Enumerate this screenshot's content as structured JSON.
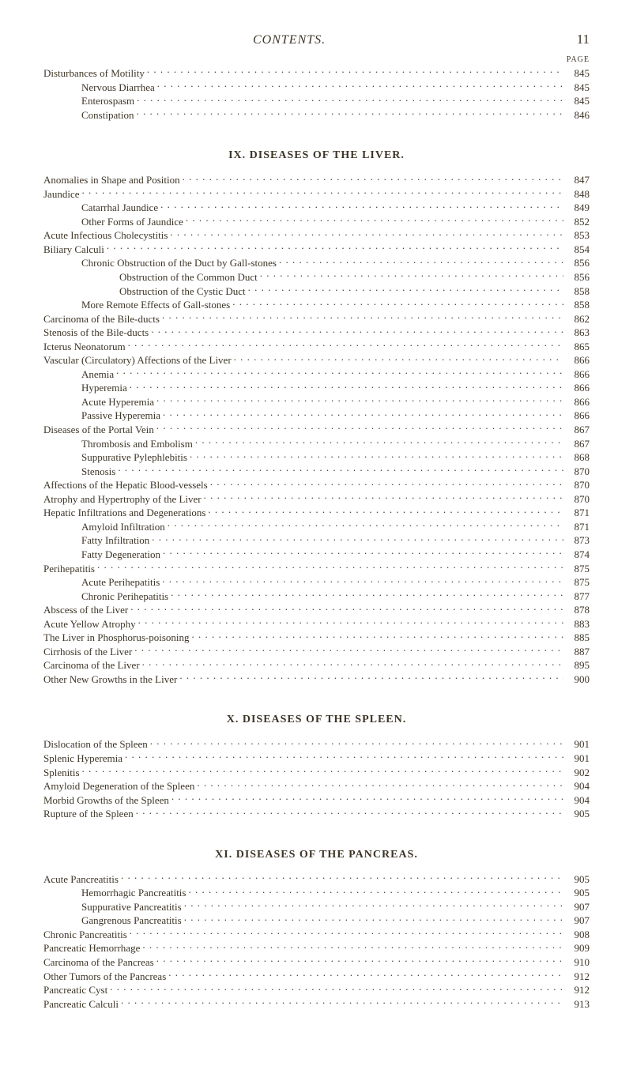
{
  "header": {
    "title": "CONTENTS.",
    "page_number": "11",
    "page_label": "PAGE"
  },
  "top_block": {
    "entries": [
      {
        "indent": 0,
        "label": "Disturbances of Motility",
        "page": "845"
      },
      {
        "indent": 1,
        "label": "Nervous Diarrhea",
        "page": "845"
      },
      {
        "indent": 1,
        "label": "Enterospasm",
        "page": "845"
      },
      {
        "indent": 1,
        "label": "Constipation",
        "page": "846"
      }
    ]
  },
  "sections": [
    {
      "heading": "IX. DISEASES OF THE LIVER.",
      "entries": [
        {
          "indent": 0,
          "label": "Anomalies in Shape and Position",
          "page": "847"
        },
        {
          "indent": 0,
          "label": "Jaundice",
          "page": "848"
        },
        {
          "indent": 1,
          "label": "Catarrhal Jaundice",
          "page": "849"
        },
        {
          "indent": 1,
          "label": "Other Forms of Jaundice",
          "page": "852"
        },
        {
          "indent": 0,
          "label": "Acute Infectious Cholecystitis",
          "page": "853"
        },
        {
          "indent": 0,
          "label": "Biliary Calculi",
          "page": "854"
        },
        {
          "indent": 1,
          "label": "Chronic Obstruction of the Duct by Gall-stones",
          "page": "856"
        },
        {
          "indent": 2,
          "label": "Obstruction of the Common Duct",
          "page": "856"
        },
        {
          "indent": 2,
          "label": "Obstruction of the Cystic Duct",
          "page": "858"
        },
        {
          "indent": 1,
          "label": "More Remote Effects of Gall-stones",
          "page": "858"
        },
        {
          "indent": 0,
          "label": "Carcinoma of the Bile-ducts",
          "page": "862"
        },
        {
          "indent": 0,
          "label": "Stenosis of the Bile-ducts",
          "page": "863"
        },
        {
          "indent": 0,
          "label": "Icterus Neonatorum",
          "page": "865"
        },
        {
          "indent": 0,
          "label": "Vascular (Circulatory) Affections of the Liver",
          "page": "866"
        },
        {
          "indent": 1,
          "label": "Anemia",
          "page": "866"
        },
        {
          "indent": 1,
          "label": "Hyperemia",
          "page": "866"
        },
        {
          "indent": 1,
          "label": "Acute Hyperemia",
          "page": "866"
        },
        {
          "indent": 1,
          "label": "Passive Hyperemia",
          "page": "866"
        },
        {
          "indent": 0,
          "label": "Diseases of the Portal Vein",
          "page": "867"
        },
        {
          "indent": 1,
          "label": "Thrombosis and Embolism",
          "page": "867"
        },
        {
          "indent": 1,
          "label": "Suppurative Pylephlebitis",
          "page": "868"
        },
        {
          "indent": 1,
          "label": "Stenosis",
          "page": "870"
        },
        {
          "indent": 0,
          "label": "Affections of the Hepatic Blood-vessels",
          "page": "870"
        },
        {
          "indent": 0,
          "label": "Atrophy and Hypertrophy of the Liver",
          "page": "870"
        },
        {
          "indent": 0,
          "label": "Hepatic Infiltrations and Degenerations",
          "page": "871"
        },
        {
          "indent": 1,
          "label": "Amyloid Infiltration",
          "page": "871"
        },
        {
          "indent": 1,
          "label": "Fatty Infiltration",
          "page": "873"
        },
        {
          "indent": 1,
          "label": "Fatty Degeneration",
          "page": "874"
        },
        {
          "indent": 0,
          "label": "Perihepatitis",
          "page": "875"
        },
        {
          "indent": 1,
          "label": "Acute Perihepatitis",
          "page": "875"
        },
        {
          "indent": 1,
          "label": "Chronic Perihepatitis",
          "page": "877"
        },
        {
          "indent": 0,
          "label": "Abscess of the Liver",
          "page": "878"
        },
        {
          "indent": 0,
          "label": "Acute Yellow Atrophy",
          "page": "883"
        },
        {
          "indent": 0,
          "label": "The Liver in Phosphorus-poisoning",
          "page": "885"
        },
        {
          "indent": 0,
          "label": "Cirrhosis of the Liver",
          "page": "887"
        },
        {
          "indent": 0,
          "label": "Carcinoma of the Liver",
          "page": "895"
        },
        {
          "indent": 0,
          "label": "Other New Growths in the Liver",
          "page": "900"
        }
      ]
    },
    {
      "heading": "X. DISEASES OF THE SPLEEN.",
      "entries": [
        {
          "indent": 0,
          "label": "Dislocation of the Spleen",
          "page": "901"
        },
        {
          "indent": 0,
          "label": "Splenic Hyperemia",
          "page": "901"
        },
        {
          "indent": 0,
          "label": "Splenitis",
          "page": "902"
        },
        {
          "indent": 0,
          "label": "Amyloid Degeneration of the Spleen",
          "page": "904"
        },
        {
          "indent": 0,
          "label": "Morbid Growths of the Spleen",
          "page": "904"
        },
        {
          "indent": 0,
          "label": "Rupture of the Spleen",
          "page": "905"
        }
      ]
    },
    {
      "heading": "XI. DISEASES OF THE PANCREAS.",
      "entries": [
        {
          "indent": 0,
          "label": "Acute Pancreatitis",
          "page": "905"
        },
        {
          "indent": 1,
          "label": "Hemorrhagic Pancreatitis",
          "page": "905"
        },
        {
          "indent": 1,
          "label": "Suppurative Pancreatitis",
          "page": "907"
        },
        {
          "indent": 1,
          "label": "Gangrenous Pancreatitis",
          "page": "907"
        },
        {
          "indent": 0,
          "label": "Chronic Pancreatitis",
          "page": "908"
        },
        {
          "indent": 0,
          "label": "Pancreatic Hemorrhage",
          "page": "909"
        },
        {
          "indent": 0,
          "label": "Carcinoma of the Pancreas",
          "page": "910"
        },
        {
          "indent": 0,
          "label": "Other Tumors of the Pancreas",
          "page": "912"
        },
        {
          "indent": 0,
          "label": "Pancreatic Cyst",
          "page": "912"
        },
        {
          "indent": 0,
          "label": "Pancreatic Calculi",
          "page": "913"
        }
      ]
    }
  ],
  "style": {
    "text_color": "#3d3527",
    "background_color": "#ffffff",
    "body_fontsize": 13,
    "heading_fontsize": 14
  }
}
